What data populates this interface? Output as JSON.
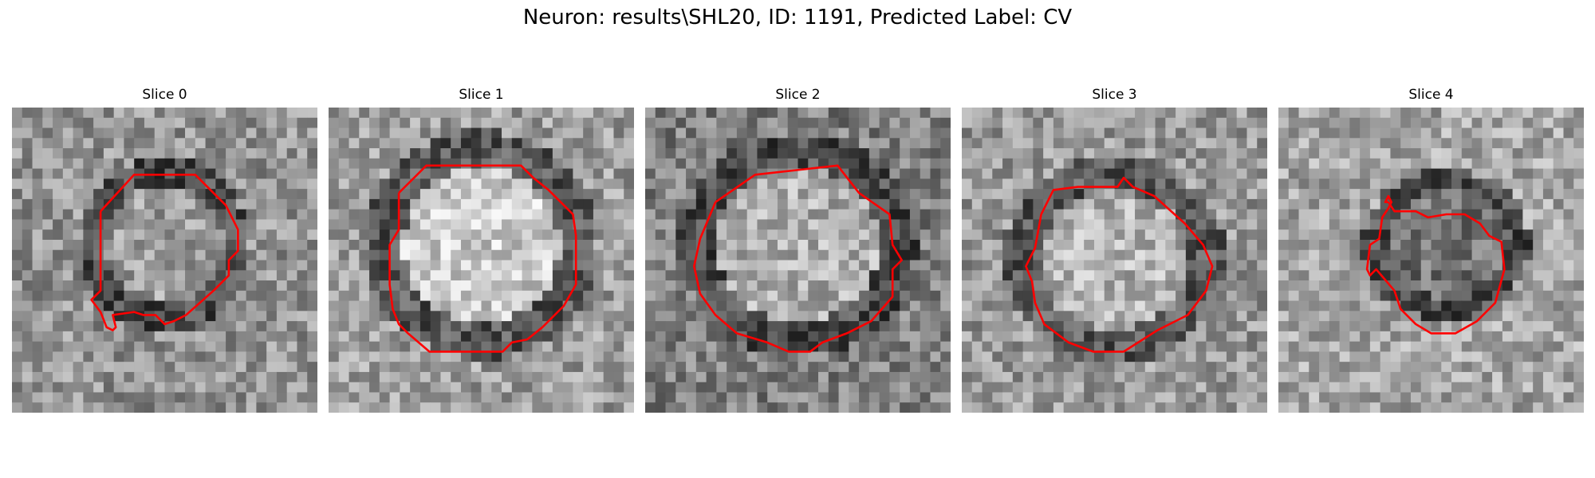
{
  "figure": {
    "title": "Neuron: results\\SHL20, ID: 1191, Predicted Label: CV"
  },
  "panels": [
    {
      "title": "Slice 0"
    },
    {
      "title": "Slice 1"
    },
    {
      "title": "Slice 2"
    },
    {
      "title": "Slice 3"
    },
    {
      "title": "Slice 4"
    }
  ],
  "colors": {
    "contour": "#ff0000"
  }
}
